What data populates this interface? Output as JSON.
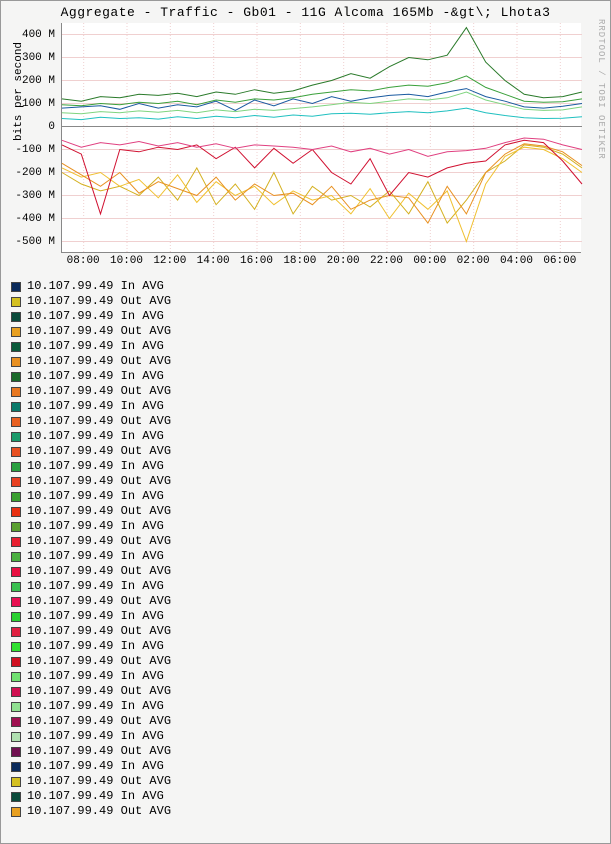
{
  "title": "Aggregate - Traffic - Gb01 - 11G Alcoma 165Mb -&gt\\; Lhota3",
  "ylabel": "bits per second",
  "watermark": "RRDTOOL / TOBI OETIKER",
  "chart": {
    "type": "line",
    "background_color": "#ffffff",
    "grid_color": "#eeccdd",
    "major_grid_color": "#ddaaaa",
    "ylim": [
      -550,
      450
    ],
    "ytick_step": 100,
    "yticks": [
      {
        "v": 400,
        "label": "400 M"
      },
      {
        "v": 300,
        "label": "300 M"
      },
      {
        "v": 200,
        "label": "200 M"
      },
      {
        "v": 100,
        "label": "100 M"
      },
      {
        "v": 0,
        "label": "0"
      },
      {
        "v": -100,
        "label": "-100 M"
      },
      {
        "v": -200,
        "label": "-200 M"
      },
      {
        "v": -300,
        "label": "-300 M"
      },
      {
        "v": -400,
        "label": "-400 M"
      },
      {
        "v": -500,
        "label": "-500 M"
      }
    ],
    "xticks": [
      "08:00",
      "10:00",
      "12:00",
      "14:00",
      "16:00",
      "18:00",
      "20:00",
      "22:00",
      "00:00",
      "02:00",
      "04:00",
      "06:00"
    ],
    "xtick_count": 12,
    "series": [
      {
        "name": "s1",
        "color": "#2a7a2a",
        "width": 1,
        "data": [
          120,
          110,
          130,
          125,
          140,
          135,
          145,
          130,
          150,
          140,
          160,
          145,
          155,
          180,
          200,
          230,
          210,
          260,
          300,
          290,
          310,
          430,
          280,
          200,
          140,
          125,
          130,
          150
        ]
      },
      {
        "name": "s2",
        "color": "#3aa03a",
        "width": 1,
        "data": [
          95,
          90,
          100,
          95,
          105,
          100,
          110,
          95,
          115,
          105,
          120,
          115,
          125,
          140,
          150,
          160,
          155,
          170,
          180,
          175,
          190,
          220,
          170,
          140,
          110,
          105,
          108,
          120
        ]
      },
      {
        "name": "s3",
        "color": "#7fd47f",
        "width": 1,
        "data": [
          60,
          55,
          65,
          60,
          68,
          62,
          70,
          60,
          72,
          65,
          75,
          70,
          78,
          85,
          95,
          105,
          100,
          110,
          120,
          115,
          125,
          150,
          115,
          95,
          75,
          70,
          72,
          85
        ]
      },
      {
        "name": "s4",
        "color": "#1a5aa0",
        "width": 1,
        "data": [
          80,
          85,
          90,
          75,
          100,
          80,
          95,
          85,
          110,
          70,
          115,
          90,
          120,
          100,
          130,
          110,
          125,
          135,
          140,
          130,
          150,
          165,
          130,
          110,
          85,
          80,
          88,
          100
        ]
      },
      {
        "name": "s5",
        "color": "#20c0c0",
        "width": 1,
        "data": [
          35,
          30,
          40,
          35,
          38,
          32,
          42,
          35,
          45,
          38,
          48,
          40,
          50,
          45,
          55,
          58,
          53,
          60,
          65,
          60,
          68,
          80,
          60,
          48,
          38,
          35,
          36,
          42
        ]
      },
      {
        "name": "o1",
        "color": "#d4b020",
        "width": 1,
        "data": [
          -200,
          -250,
          -280,
          -260,
          -300,
          -220,
          -320,
          -180,
          -340,
          -250,
          -360,
          -200,
          -380,
          -260,
          -320,
          -300,
          -350,
          -280,
          -380,
          -240,
          -420,
          -320,
          -200,
          -150,
          -80,
          -90,
          -120,
          -180
        ]
      },
      {
        "name": "o2",
        "color": "#f0c030",
        "width": 1,
        "data": [
          -180,
          -220,
          -200,
          -260,
          -230,
          -310,
          -210,
          -330,
          -240,
          -300,
          -260,
          -340,
          -280,
          -320,
          -300,
          -380,
          -270,
          -400,
          -290,
          -360,
          -280,
          -500,
          -250,
          -130,
          -90,
          -100,
          -140,
          -200
        ]
      },
      {
        "name": "o3",
        "color": "#e89020",
        "width": 1,
        "data": [
          -160,
          -210,
          -260,
          -200,
          -290,
          -240,
          -270,
          -300,
          -220,
          -320,
          -250,
          -300,
          -290,
          -340,
          -260,
          -360,
          -320,
          -300,
          -310,
          -420,
          -260,
          -380,
          -200,
          -120,
          -75,
          -85,
          -110,
          -170
        ]
      },
      {
        "name": "o4",
        "color": "#d01030",
        "width": 1,
        "data": [
          -80,
          -120,
          -380,
          -100,
          -110,
          -90,
          -100,
          -80,
          -140,
          -90,
          -180,
          -95,
          -160,
          -100,
          -200,
          -250,
          -140,
          -300,
          -200,
          -220,
          -180,
          -160,
          -150,
          -80,
          -60,
          -70,
          -150,
          -250
        ]
      },
      {
        "name": "o5",
        "color": "#e04080",
        "width": 1,
        "data": [
          -60,
          -90,
          -70,
          -80,
          -65,
          -85,
          -70,
          -90,
          -75,
          -95,
          -80,
          -85,
          -90,
          -100,
          -85,
          -110,
          -95,
          -120,
          -100,
          -130,
          -110,
          -105,
          -95,
          -70,
          -50,
          -55,
          -80,
          -100
        ]
      }
    ]
  },
  "legend": {
    "ip": "10.107.99.49",
    "items": [
      {
        "color": "#0a2a5a",
        "label": "10.107.99.49 In AVG"
      },
      {
        "color": "#d4c020",
        "label": "10.107.99.49 Out AVG"
      },
      {
        "color": "#0a4a3a",
        "label": "10.107.99.49 In AVG"
      },
      {
        "color": "#e8a020",
        "label": "10.107.99.49 Out AVG"
      },
      {
        "color": "#0a5a3a",
        "label": "10.107.99.49 In AVG"
      },
      {
        "color": "#e89020",
        "label": "10.107.99.49 Out AVG"
      },
      {
        "color": "#1a6a2a",
        "label": "10.107.99.49 In AVG"
      },
      {
        "color": "#e87820",
        "label": "10.107.99.49 Out AVG"
      },
      {
        "color": "#0a7a6a",
        "label": "10.107.99.49 In AVG"
      },
      {
        "color": "#e86020",
        "label": "10.107.99.49 Out AVG"
      },
      {
        "color": "#1a9a6a",
        "label": "10.107.99.49 In AVG"
      },
      {
        "color": "#e85020",
        "label": "10.107.99.49 Out AVG"
      },
      {
        "color": "#2aa040",
        "label": "10.107.99.49 In AVG"
      },
      {
        "color": "#e84020",
        "label": "10.107.99.49 Out AVG"
      },
      {
        "color": "#3aa030",
        "label": "10.107.99.49 In AVG"
      },
      {
        "color": "#e83010",
        "label": "10.107.99.49 Out AVG"
      },
      {
        "color": "#5aa030",
        "label": "10.107.99.49 In AVG"
      },
      {
        "color": "#e82030",
        "label": "10.107.99.49 Out AVG"
      },
      {
        "color": "#4ab040",
        "label": "10.107.99.49 In AVG"
      },
      {
        "color": "#e81040",
        "label": "10.107.99.49 Out AVG"
      },
      {
        "color": "#3ac050",
        "label": "10.107.99.49 In AVG"
      },
      {
        "color": "#e81050",
        "label": "10.107.99.49 Out AVG"
      },
      {
        "color": "#2ad030",
        "label": "10.107.99.49 In AVG"
      },
      {
        "color": "#e02040",
        "label": "10.107.99.49 Out AVG"
      },
      {
        "color": "#30e030",
        "label": "10.107.99.49 In AVG"
      },
      {
        "color": "#d01020",
        "label": "10.107.99.49 Out AVG"
      },
      {
        "color": "#70e070",
        "label": "10.107.99.49 In AVG"
      },
      {
        "color": "#d01050",
        "label": "10.107.99.49 Out AVG"
      },
      {
        "color": "#90e090",
        "label": "10.107.99.49 In AVG"
      },
      {
        "color": "#a01050",
        "label": "10.107.99.49 Out AVG"
      },
      {
        "color": "#b0e0b0",
        "label": "10.107.99.49 In AVG"
      },
      {
        "color": "#701050",
        "label": "10.107.99.49 Out AVG"
      },
      {
        "color": "#0a2a5a",
        "label": "10.107.99.49 In AVG"
      },
      {
        "color": "#d4c020",
        "label": "10.107.99.49 Out AVG"
      },
      {
        "color": "#0a4a3a",
        "label": "10.107.99.49 In AVG"
      },
      {
        "color": "#e8a020",
        "label": "10.107.99.49 Out AVG"
      }
    ]
  }
}
